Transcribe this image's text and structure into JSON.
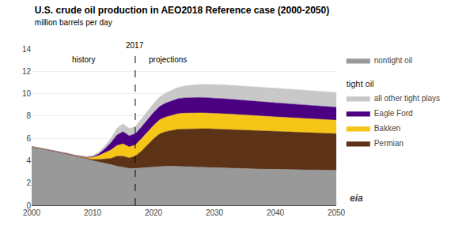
{
  "chart_data": {
    "type": "area",
    "stacked": true,
    "title": "U.S. crude oil production in AEO2018 Reference case (2000-2050)",
    "subtitle": "million barrels per day",
    "x": [
      2000,
      2001,
      2002,
      2003,
      2004,
      2005,
      2006,
      2007,
      2008,
      2009,
      2010,
      2011,
      2012,
      2013,
      2014,
      2015,
      2016,
      2017,
      2018,
      2019,
      2020,
      2021,
      2022,
      2023,
      2024,
      2025,
      2026,
      2027,
      2028,
      2029,
      2030,
      2031,
      2032,
      2033,
      2034,
      2035,
      2036,
      2037,
      2038,
      2039,
      2040,
      2041,
      2042,
      2043,
      2044,
      2045,
      2046,
      2047,
      2048,
      2049,
      2050
    ],
    "xlim": [
      2000,
      2050
    ],
    "xticks": [
      2000,
      2010,
      2020,
      2030,
      2040,
      2050
    ],
    "ylim": [
      0,
      14
    ],
    "yticks": [
      0,
      2,
      4,
      6,
      8,
      10,
      12,
      14
    ],
    "grid": true,
    "legend": "right",
    "divider": 2017,
    "annotations": [
      "history",
      "projections",
      "eia"
    ],
    "series": [
      {
        "name": "nontight oil",
        "color": "#999999",
        "values": [
          5.2,
          5.1,
          4.95,
          4.85,
          4.75,
          4.65,
          4.55,
          4.4,
          4.3,
          4.15,
          4.0,
          3.9,
          3.8,
          3.65,
          3.5,
          3.4,
          3.3,
          3.3,
          3.35,
          3.4,
          3.45,
          3.5,
          3.5,
          3.5,
          3.5,
          3.48,
          3.45,
          3.42,
          3.4,
          3.38,
          3.35,
          3.33,
          3.32,
          3.3,
          3.28,
          3.27,
          3.26,
          3.25,
          3.24,
          3.23,
          3.22,
          3.21,
          3.2,
          3.19,
          3.18,
          3.17,
          3.16,
          3.15,
          3.14,
          3.13,
          3.12
        ]
      },
      {
        "name": "Permian",
        "color": "#5c3317",
        "group": "tight oil",
        "values": [
          0.05,
          0.05,
          0.05,
          0.05,
          0.05,
          0.05,
          0.05,
          0.05,
          0.05,
          0.05,
          0.1,
          0.2,
          0.35,
          0.55,
          0.9,
          1.0,
          0.95,
          1.1,
          1.5,
          2.0,
          2.5,
          2.9,
          3.1,
          3.2,
          3.3,
          3.35,
          3.4,
          3.42,
          3.45,
          3.47,
          3.48,
          3.48,
          3.47,
          3.46,
          3.45,
          3.44,
          3.43,
          3.42,
          3.41,
          3.4,
          3.39,
          3.38,
          3.37,
          3.36,
          3.35,
          3.34,
          3.33,
          3.32,
          3.31,
          3.3,
          3.29
        ]
      },
      {
        "name": "Bakken",
        "color": "#f5c518",
        "group": "tight oil",
        "values": [
          0.01,
          0.01,
          0.01,
          0.01,
          0.01,
          0.01,
          0.02,
          0.03,
          0.05,
          0.1,
          0.2,
          0.35,
          0.55,
          0.75,
          0.95,
          1.1,
          0.98,
          1.0,
          1.1,
          1.15,
          1.2,
          1.25,
          1.3,
          1.35,
          1.4,
          1.42,
          1.43,
          1.43,
          1.43,
          1.42,
          1.41,
          1.4,
          1.39,
          1.38,
          1.37,
          1.36,
          1.35,
          1.34,
          1.33,
          1.32,
          1.31,
          1.3,
          1.29,
          1.28,
          1.27,
          1.26,
          1.25,
          1.24,
          1.23,
          1.22,
          1.21
        ]
      },
      {
        "name": "Eagle Ford",
        "color": "#4b0082",
        "group": "tight oil",
        "values": [
          0.01,
          0.01,
          0.01,
          0.01,
          0.01,
          0.01,
          0.01,
          0.01,
          0.01,
          0.01,
          0.05,
          0.15,
          0.35,
          0.65,
          0.95,
          1.1,
          1.0,
          1.0,
          1.05,
          1.1,
          1.15,
          1.2,
          1.25,
          1.3,
          1.35,
          1.37,
          1.38,
          1.38,
          1.38,
          1.37,
          1.36,
          1.35,
          1.34,
          1.33,
          1.32,
          1.31,
          1.3,
          1.29,
          1.28,
          1.27,
          1.26,
          1.25,
          1.24,
          1.23,
          1.22,
          1.21,
          1.2,
          1.19,
          1.18,
          1.17,
          1.16
        ]
      },
      {
        "name": "all other tight plays",
        "color": "#c8c8c8",
        "group": "tight oil",
        "values": [
          0.02,
          0.02,
          0.02,
          0.02,
          0.02,
          0.02,
          0.02,
          0.03,
          0.04,
          0.05,
          0.1,
          0.15,
          0.25,
          0.4,
          0.6,
          0.7,
          0.65,
          0.65,
          0.7,
          0.75,
          0.8,
          0.85,
          0.9,
          0.95,
          1.0,
          1.05,
          1.1,
          1.15,
          1.18,
          1.2,
          1.22,
          1.24,
          1.25,
          1.26,
          1.27,
          1.28,
          1.29,
          1.3,
          1.31,
          1.32,
          1.32,
          1.32,
          1.32,
          1.32,
          1.32,
          1.32,
          1.32,
          1.32,
          1.32,
          1.32,
          1.32
        ]
      }
    ]
  }
}
